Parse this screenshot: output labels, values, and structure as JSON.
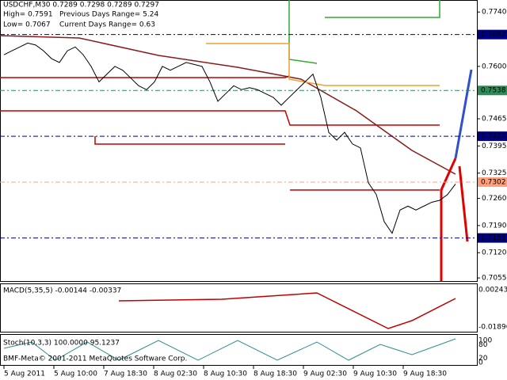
{
  "chart_data": {
    "type": "line",
    "header": {
      "symbol": "USDCHF,M30  0.7289 0.7298 0.7289 0.7297",
      "high": "High= 0.7591",
      "prev_range": "Previous Days Range= 5.24",
      "low": "Low= 0.7067",
      "curr_range": "Current Days Range= 0.63"
    },
    "series": [
      {
        "name": "USDCHF",
        "color": "#000000",
        "values": [
          0.763,
          0.764,
          0.765,
          0.766,
          0.7655,
          0.764,
          0.762,
          0.761,
          0.764,
          0.765,
          0.763,
          0.76,
          0.756,
          0.758,
          0.76,
          0.759,
          0.757,
          0.755,
          0.754,
          0.756,
          0.76,
          0.759,
          0.76,
          0.761,
          0.7605,
          0.76,
          0.756,
          0.751,
          0.753,
          0.755,
          0.754,
          0.7545,
          0.754,
          0.753,
          0.752,
          0.75,
          0.752,
          0.754,
          0.756,
          0.758,
          0.752,
          0.743,
          0.741,
          0.743,
          0.74,
          0.739,
          0.73,
          0.727,
          0.72,
          0.717,
          0.723,
          0.724,
          0.723,
          0.724,
          0.725,
          0.7255,
          0.727,
          0.7297
        ]
      }
    ],
    "ylim": [
      0.7047,
      0.7771
    ],
    "yticks": [
      {
        "value": 0.774,
        "label": "0.7740"
      },
      {
        "value": 0.76,
        "label": "0.7600"
      },
      {
        "value": 0.7465,
        "label": "0.7465"
      },
      {
        "value": 0.7395,
        "label": "0.7395"
      },
      {
        "value": 0.7325,
        "label": "0.7325"
      },
      {
        "value": 0.726,
        "label": "0.7260"
      },
      {
        "value": 0.719,
        "label": "0.7190"
      },
      {
        "value": 0.712,
        "label": "0.7120"
      },
      {
        "value": 0.7055,
        "label": "0.7055"
      }
    ],
    "levels": [
      {
        "value": 0.7682,
        "label": "0.7682",
        "color": "#000080"
      },
      {
        "value": 0.7538,
        "label": "0.7538",
        "color": "#2e8b57"
      },
      {
        "value": 0.742,
        "label": "0.7420",
        "color": "#000080"
      },
      {
        "value": 0.7302,
        "label": "0.7302",
        "color": "#ffa07a"
      },
      {
        "value": 0.7158,
        "label": "0.7158",
        "color": "#000080"
      }
    ],
    "x_labels": [
      "5 Aug 2011",
      "5 Aug 10:00",
      "7 Aug 18:30",
      "8 Aug 02:30",
      "8 Aug 10:30",
      "8 Aug 18:30",
      "9 Aug 02:30",
      "9 Aug 10:30",
      "9 Aug 18:30"
    ],
    "macd": {
      "label": "MACD(5,35,5) -0.00144 -0.00337",
      "ticks": [
        {
          "value": 0.00243,
          "label": "0.00243"
        },
        {
          "value": -0.01896,
          "label": "-0.01896"
        }
      ]
    },
    "stoch": {
      "label": "Stoch(10,3,3) 100.0000 95.1237",
      "ticks": [
        100,
        80,
        20,
        0
      ]
    },
    "copyright": "BMF-Meta© 2001-2011 MetaQuotes Software Corp."
  }
}
